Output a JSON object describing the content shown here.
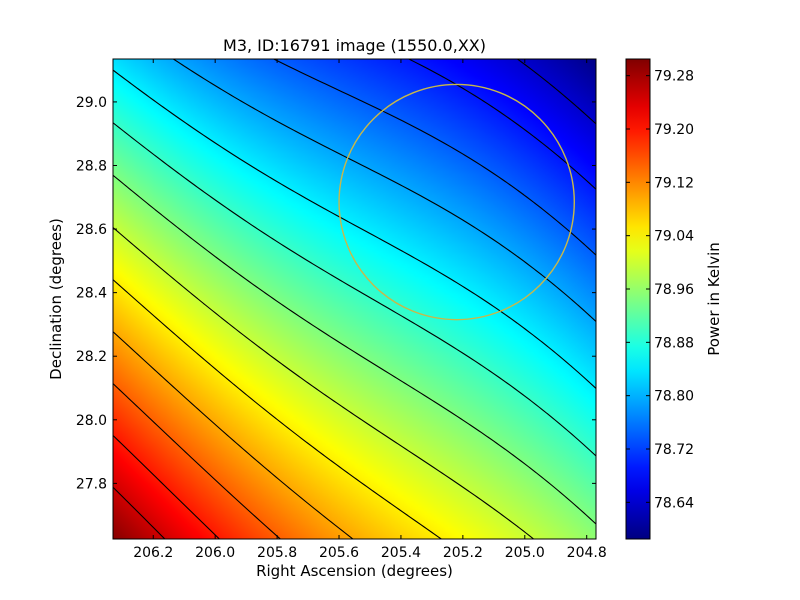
{
  "chart_data": {
    "type": "heatmap",
    "title": "M3, ID:16791 image (1550.0,XX)",
    "xlabel": "Right Ascension (degrees)",
    "ylabel": "Declination (degrees)",
    "xlim": [
      206.33,
      204.77
    ],
    "ylim": [
      27.625,
      29.135
    ],
    "x_ticks": [
      206.2,
      206.0,
      205.8,
      205.6,
      205.4,
      205.2,
      205.0,
      204.8
    ],
    "x_tick_labels": [
      "206.2",
      "206.0",
      "205.8",
      "205.6",
      "205.4",
      "205.2",
      "205.0",
      "204.8"
    ],
    "y_ticks": [
      27.8,
      28.0,
      28.2,
      28.4,
      28.6,
      28.8,
      29.0
    ],
    "y_tick_labels": [
      "27.8",
      "28.0",
      "28.2",
      "28.4",
      "28.6",
      "28.8",
      "29.0"
    ],
    "colorbar": {
      "label": "Power in Kelvin",
      "colormap": "jet",
      "vmin": 78.585,
      "vmax": 79.305,
      "ticks": [
        78.64,
        78.72,
        78.8,
        78.88,
        78.96,
        79.04,
        79.12,
        79.2,
        79.28
      ],
      "tick_labels": [
        "78.64",
        "78.72",
        "78.80",
        "78.88",
        "78.96",
        "79.04",
        "79.12",
        "79.20",
        "79.28"
      ]
    },
    "field": {
      "description_values": "Power in Kelvin; maximum at lower-left corner, minimum at upper-right corner",
      "max_value": 79.3,
      "min_value": 78.59,
      "contour_levels": 13,
      "contour_color": "#000000"
    },
    "annotation_circle": {
      "center_ra": 205.22,
      "center_dec": 28.685,
      "radius_deg": 0.37,
      "color": "#c8b84a"
    }
  }
}
